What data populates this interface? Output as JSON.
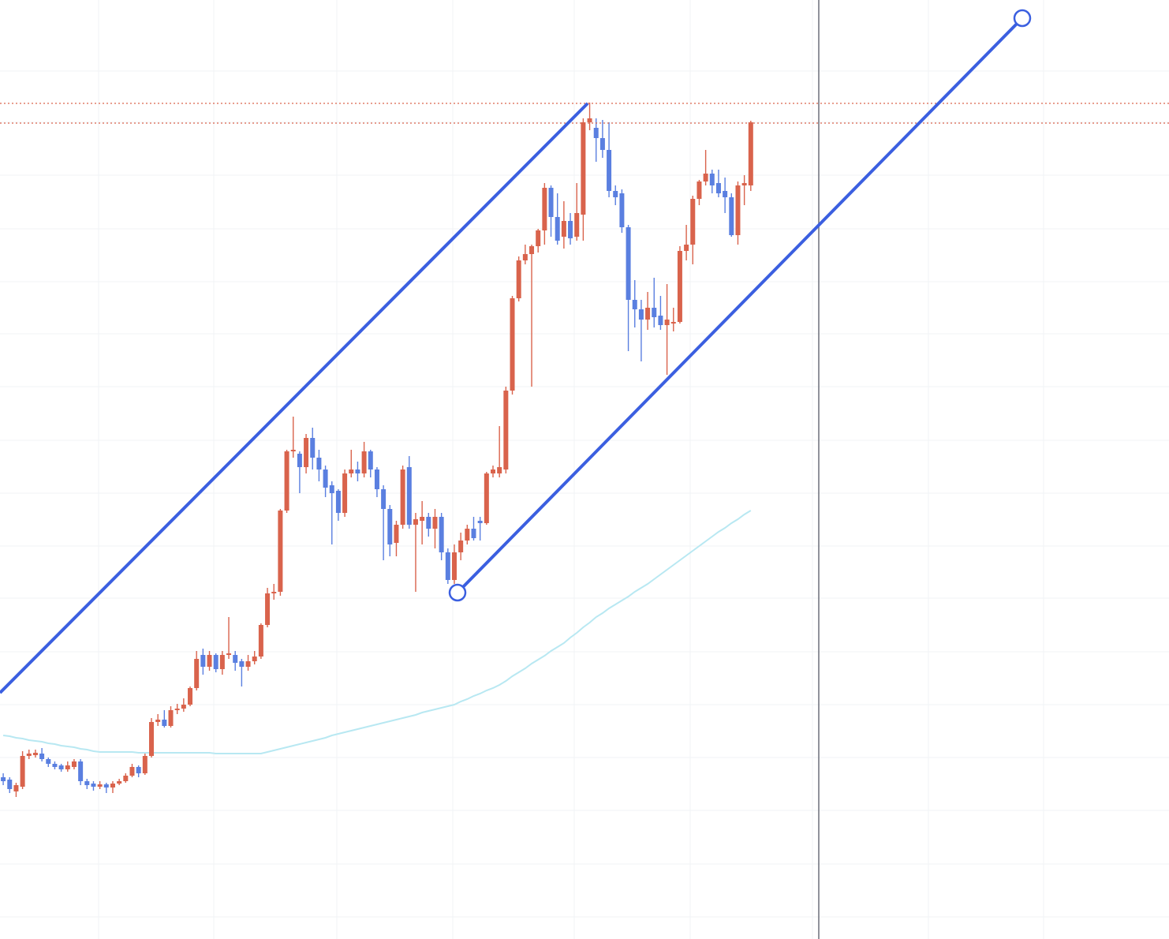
{
  "chart_data": {
    "type": "candlestick",
    "categories": [
      null,
      null,
      null,
      null,
      null,
      null,
      null,
      null,
      null,
      null,
      null,
      null,
      null,
      null,
      null,
      null,
      null,
      null,
      null,
      null,
      null,
      null,
      null,
      null,
      null,
      null,
      null,
      null,
      null,
      null,
      null,
      null,
      null,
      null,
      null,
      null,
      null,
      null,
      null,
      null,
      null,
      null,
      null,
      null,
      null,
      null,
      null,
      null,
      null,
      null,
      null,
      null,
      null,
      null,
      null,
      null,
      null,
      null,
      null,
      null,
      null,
      null,
      null,
      null,
      null,
      null,
      null,
      null,
      null,
      null,
      null,
      null,
      null,
      null,
      null,
      null,
      null,
      null,
      null,
      null,
      null,
      null,
      null,
      null,
      null,
      null,
      null,
      null,
      null,
      null,
      null,
      null,
      null,
      null,
      null,
      null,
      null,
      null,
      null,
      null,
      null,
      null,
      null,
      null,
      null,
      null,
      null,
      null,
      null,
      null,
      null,
      null,
      null,
      null,
      null,
      null,
      null
    ],
    "open": [
      205,
      202,
      187,
      193,
      232,
      233,
      235,
      228,
      222,
      220,
      215,
      218,
      225,
      200,
      197,
      193,
      196,
      192,
      197,
      200,
      207,
      218,
      210,
      232,
      275,
      278,
      270,
      290,
      292,
      297,
      318,
      360,
      345,
      360,
      342,
      360,
      360,
      352,
      345,
      352,
      358,
      398,
      438,
      440,
      543,
      618,
      615,
      598,
      635,
      610,
      595,
      575,
      568,
      540,
      590,
      595,
      590,
      618,
      595,
      570,
      545,
      502,
      525,
      598,
      525,
      530,
      535,
      520,
      535,
      490,
      455,
      490,
      505,
      520,
      530,
      527,
      590,
      590,
      595,
      695,
      812,
      860,
      868,
      878,
      898,
      952,
      915,
      890,
      910,
      890,
      918,
      1035,
      1028,
      1015,
      1000,
      948,
      945,
      902,
      810,
      798,
      785,
      800,
      790,
      778,
      780,
      782,
      872,
      880,
      938,
      960,
      970,
      958,
      948,
      940,
      892,
      955,
      955
    ],
    "high": [
      210,
      205,
      198,
      238,
      240,
      240,
      242,
      230,
      225,
      222,
      225,
      228,
      228,
      203,
      200,
      200,
      198,
      200,
      203,
      210,
      222,
      220,
      235,
      280,
      285,
      290,
      295,
      298,
      305,
      320,
      365,
      368,
      365,
      362,
      365,
      408,
      365,
      355,
      360,
      365,
      400,
      445,
      450,
      545,
      620,
      662,
      618,
      640,
      648,
      620,
      600,
      580,
      570,
      595,
      620,
      605,
      630,
      620,
      598,
      575,
      550,
      530,
      600,
      612,
      540,
      555,
      540,
      545,
      540,
      495,
      500,
      515,
      525,
      535,
      535,
      592,
      600,
      650,
      700,
      815,
      865,
      880,
      880,
      900,
      958,
      955,
      945,
      935,
      920,
      958,
      1040,
      1060,
      1040,
      1038,
      1035,
      955,
      950,
      905,
      835,
      810,
      820,
      838,
      815,
      830,
      800,
      878,
      905,
      942,
      962,
      1000,
      975,
      975,
      965,
      945,
      960,
      968,
      1037
    ],
    "low": [
      195,
      185,
      180,
      190,
      228,
      230,
      225,
      218,
      215,
      212,
      212,
      215,
      195,
      190,
      188,
      190,
      185,
      185,
      195,
      198,
      205,
      205,
      208,
      230,
      270,
      268,
      268,
      285,
      288,
      295,
      315,
      335,
      340,
      338,
      335,
      355,
      340,
      320,
      340,
      348,
      355,
      395,
      430,
      435,
      540,
      610,
      565,
      590,
      595,
      580,
      560,
      500,
      530,
      535,
      585,
      580,
      585,
      585,
      560,
      480,
      485,
      485,
      520,
      520,
      440,
      500,
      510,
      495,
      480,
      450,
      450,
      480,
      500,
      505,
      505,
      525,
      585,
      585,
      590,
      690,
      808,
      855,
      700,
      870,
      880,
      890,
      880,
      875,
      880,
      885,
      885,
      1025,
      985,
      990,
      940,
      930,
      895,
      745,
      775,
      732,
      772,
      775,
      772,
      715,
      770,
      780,
      860,
      855,
      930,
      955,
      945,
      940,
      920,
      890,
      880,
      930,
      948
    ],
    "close": [
      200,
      190,
      195,
      232,
      235,
      236,
      228,
      222,
      218,
      215,
      220,
      225,
      200,
      195,
      193,
      196,
      192,
      197,
      200,
      207,
      218,
      210,
      232,
      275,
      278,
      270,
      290,
      292,
      297,
      318,
      355,
      345,
      360,
      342,
      360,
      362,
      350,
      345,
      352,
      358,
      398,
      438,
      440,
      543,
      618,
      620,
      598,
      635,
      610,
      595,
      572,
      565,
      540,
      590,
      595,
      590,
      618,
      595,
      570,
      545,
      500,
      525,
      595,
      525,
      532,
      535,
      520,
      535,
      490,
      455,
      490,
      505,
      520,
      508,
      527,
      590,
      595,
      598,
      695,
      812,
      860,
      868,
      878,
      898,
      952,
      915,
      885,
      910,
      888,
      920,
      1035,
      1040,
      1015,
      1000,
      948,
      940,
      902,
      810,
      798,
      785,
      800,
      788,
      778,
      785,
      782,
      872,
      880,
      938,
      960,
      970,
      955,
      945,
      940,
      892,
      955,
      958,
      1035
    ],
    "up_color": "#d9634c",
    "down_color": "#5a7fe0",
    "ma": {
      "color": "#b8e8f2",
      "values": [
        258,
        257,
        255,
        254,
        252,
        251,
        250,
        248,
        247,
        245,
        244,
        243,
        241,
        240,
        238,
        237,
        237,
        237,
        237,
        237,
        237,
        236,
        236,
        236,
        236,
        236,
        236,
        236,
        236,
        236,
        236,
        236,
        236,
        235,
        235,
        235,
        235,
        235,
        235,
        235,
        235,
        237,
        239,
        241,
        243,
        245,
        247,
        249,
        251,
        253,
        255,
        258,
        260,
        262,
        264,
        266,
        268,
        270,
        272,
        274,
        276,
        278,
        280,
        282,
        284,
        287,
        289,
        291,
        293,
        295,
        297,
        301,
        304,
        308,
        311,
        315,
        318,
        322,
        327,
        333,
        338,
        343,
        349,
        354,
        359,
        365,
        370,
        375,
        382,
        388,
        395,
        401,
        408,
        413,
        419,
        424,
        429,
        434,
        440,
        445,
        450,
        456,
        462,
        468,
        474,
        480,
        486,
        492,
        498,
        504,
        510,
        516,
        521,
        527,
        532,
        538,
        543
      ]
    },
    "ylim": [
      0,
      1190
    ],
    "yticks": [
      28,
      95,
      163,
      230,
      297,
      364,
      432,
      498,
      565,
      632,
      700,
      767,
      833,
      900,
      968,
      1035,
      1100
    ],
    "grid": true
  }
}
